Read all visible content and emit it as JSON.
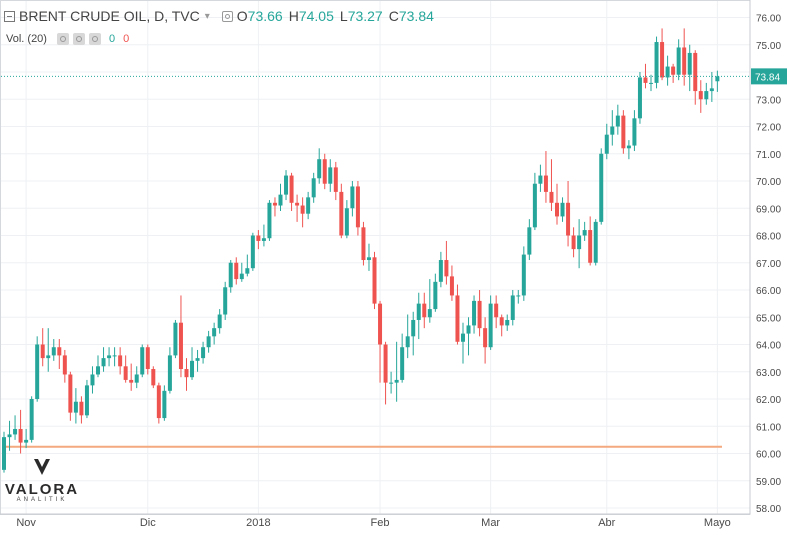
{
  "header": {
    "symbol": "BRENT CRUDE OIL, D, TVC",
    "open_label": "O",
    "open": "73.66",
    "high_label": "H",
    "high": "74.05",
    "low_label": "L",
    "low": "73.27",
    "close_label": "C",
    "close": "73.84"
  },
  "volume": {
    "label": "Vol. (20)",
    "up": "0",
    "down": "0"
  },
  "logo": {
    "name": "VALORA",
    "sub": "ANALITIK"
  },
  "colors": {
    "up": "#26a69a",
    "down": "#ef5350",
    "grid": "#eef0f3",
    "price_line": "#26a69a",
    "support_line": "#f4a97f"
  },
  "chart_data": {
    "type": "candlestick",
    "title": "BRENT CRUDE OIL, D, TVC",
    "xlabel": "",
    "ylabel": "",
    "ylim": [
      57.8,
      76.3
    ],
    "y_ticks": [
      "58.00",
      "59.00",
      "60.00",
      "61.00",
      "62.00",
      "63.00",
      "64.00",
      "65.00",
      "66.00",
      "67.00",
      "68.00",
      "69.00",
      "70.00",
      "71.00",
      "72.00",
      "73.00",
      "74.00",
      "75.00",
      "76.00"
    ],
    "x_ticks": [
      {
        "label": "Nov",
        "session": 4
      },
      {
        "label": "Dic",
        "session": 26
      },
      {
        "label": "2018",
        "session": 46
      },
      {
        "label": "Feb",
        "session": 68
      },
      {
        "label": "Mar",
        "session": 88
      },
      {
        "label": "Abr",
        "session": 109
      },
      {
        "label": "Mayo",
        "session": 129
      }
    ],
    "last_price": "73.84",
    "support_level": 60.25,
    "grid": true,
    "candles": [
      [
        0,
        59.4,
        60.6,
        59.3,
        60.8
      ],
      [
        1,
        60.6,
        60.7,
        60.1,
        61.2
      ],
      [
        2,
        60.7,
        60.9,
        60.5,
        61.4
      ],
      [
        3,
        60.9,
        60.4,
        60.0,
        61.6
      ],
      [
        4,
        60.4,
        60.5,
        60.2,
        60.9
      ],
      [
        5,
        60.5,
        62.0,
        60.4,
        62.1
      ],
      [
        6,
        62.0,
        64.0,
        61.9,
        64.3
      ],
      [
        7,
        64.0,
        63.5,
        63.2,
        64.6
      ],
      [
        8,
        63.5,
        63.6,
        63.0,
        64.6
      ],
      [
        9,
        63.6,
        63.9,
        63.4,
        64.2
      ],
      [
        10,
        63.9,
        63.6,
        63.1,
        64.2
      ],
      [
        11,
        63.6,
        62.9,
        62.6,
        63.8
      ],
      [
        12,
        62.9,
        61.5,
        61.2,
        63.0
      ],
      [
        13,
        61.5,
        61.9,
        61.1,
        62.4
      ],
      [
        14,
        61.9,
        61.4,
        61.1,
        62.1
      ],
      [
        15,
        61.4,
        62.5,
        61.3,
        62.7
      ],
      [
        16,
        62.5,
        62.9,
        62.2,
        63.2
      ],
      [
        17,
        62.9,
        63.2,
        62.8,
        63.6
      ],
      [
        18,
        63.2,
        63.5,
        63.0,
        63.9
      ],
      [
        19,
        63.5,
        63.6,
        63.2,
        63.9
      ],
      [
        20,
        63.6,
        63.6,
        63.2,
        63.9
      ],
      [
        21,
        63.6,
        63.2,
        62.9,
        63.9
      ],
      [
        22,
        63.2,
        62.7,
        62.6,
        63.6
      ],
      [
        23,
        62.7,
        62.6,
        62.3,
        63.3
      ],
      [
        24,
        62.6,
        62.9,
        62.4,
        63.2
      ],
      [
        25,
        62.9,
        63.9,
        62.8,
        64.0
      ],
      [
        26,
        63.9,
        63.1,
        62.9,
        64.0
      ],
      [
        27,
        63.1,
        62.5,
        62.4,
        63.2
      ],
      [
        28,
        62.5,
        61.3,
        61.1,
        62.6
      ],
      [
        29,
        61.3,
        62.3,
        61.2,
        62.5
      ],
      [
        30,
        62.3,
        63.6,
        62.2,
        63.9
      ],
      [
        31,
        63.6,
        64.8,
        63.5,
        64.9
      ],
      [
        32,
        64.8,
        63.1,
        62.8,
        65.8
      ],
      [
        33,
        63.1,
        62.8,
        62.3,
        63.5
      ],
      [
        34,
        62.8,
        63.4,
        62.7,
        63.9
      ],
      [
        35,
        63.4,
        63.5,
        63.0,
        63.8
      ],
      [
        36,
        63.5,
        63.9,
        63.3,
        64.1
      ],
      [
        37,
        63.9,
        64.3,
        63.7,
        64.5
      ],
      [
        38,
        64.3,
        64.6,
        64.0,
        64.8
      ],
      [
        39,
        64.6,
        65.1,
        64.4,
        65.3
      ],
      [
        40,
        65.1,
        66.1,
        64.9,
        66.3
      ],
      [
        41,
        66.1,
        67.0,
        65.9,
        67.1
      ],
      [
        42,
        67.0,
        66.4,
        66.2,
        67.2
      ],
      [
        43,
        66.4,
        66.6,
        66.3,
        67.0
      ],
      [
        44,
        66.6,
        66.8,
        66.5,
        67.3
      ],
      [
        45,
        66.8,
        68.0,
        66.7,
        68.1
      ],
      [
        46,
        68.0,
        67.8,
        67.5,
        68.2
      ],
      [
        47,
        67.8,
        67.9,
        67.6,
        68.4
      ],
      [
        48,
        67.9,
        69.2,
        67.8,
        69.3
      ],
      [
        49,
        69.2,
        69.1,
        68.7,
        69.4
      ],
      [
        50,
        69.1,
        69.5,
        68.9,
        69.9
      ],
      [
        51,
        69.5,
        70.2,
        69.3,
        70.4
      ],
      [
        52,
        70.2,
        69.2,
        68.9,
        70.3
      ],
      [
        53,
        69.2,
        69.1,
        68.5,
        69.5
      ],
      [
        54,
        69.1,
        68.8,
        68.3,
        69.4
      ],
      [
        55,
        68.8,
        69.4,
        68.6,
        69.6
      ],
      [
        56,
        69.4,
        70.1,
        69.2,
        70.3
      ],
      [
        57,
        70.1,
        70.8,
        69.9,
        71.2
      ],
      [
        58,
        70.8,
        69.9,
        69.7,
        71.0
      ],
      [
        59,
        69.9,
        70.5,
        69.6,
        70.8
      ],
      [
        60,
        70.5,
        69.6,
        69.3,
        70.7
      ],
      [
        61,
        69.6,
        68.0,
        67.9,
        69.9
      ],
      [
        62,
        68.0,
        69.0,
        67.9,
        69.3
      ],
      [
        63,
        69.0,
        69.8,
        68.7,
        70.0
      ],
      [
        64,
        69.8,
        68.3,
        68.0,
        70.0
      ],
      [
        65,
        68.3,
        67.1,
        66.9,
        68.5
      ],
      [
        66,
        67.1,
        67.2,
        66.7,
        67.7
      ],
      [
        67,
        67.2,
        65.5,
        65.3,
        67.4
      ],
      [
        68,
        65.5,
        64.0,
        62.6,
        65.6
      ],
      [
        69,
        64.0,
        62.6,
        61.8,
        64.1
      ],
      [
        70,
        62.6,
        62.6,
        62.2,
        63.0
      ],
      [
        71,
        62.6,
        62.7,
        61.9,
        64.1
      ],
      [
        72,
        62.7,
        63.9,
        62.6,
        64.4
      ],
      [
        73,
        63.9,
        64.3,
        63.5,
        65.1
      ],
      [
        74,
        64.3,
        64.9,
        63.6,
        65.2
      ],
      [
        75,
        64.9,
        65.5,
        64.2,
        65.9
      ],
      [
        76,
        65.5,
        65.0,
        64.6,
        65.9
      ],
      [
        77,
        65.0,
        65.3,
        64.8,
        66.4
      ],
      [
        78,
        65.3,
        66.3,
        65.2,
        66.6
      ],
      [
        79,
        66.3,
        67.1,
        66.1,
        67.4
      ],
      [
        80,
        67.1,
        66.5,
        66.2,
        67.8
      ],
      [
        81,
        66.5,
        65.8,
        65.6,
        66.9
      ],
      [
        82,
        65.8,
        64.1,
        64.0,
        66.2
      ],
      [
        83,
        64.1,
        64.4,
        63.3,
        64.8
      ],
      [
        84,
        64.4,
        64.7,
        63.6,
        65.0
      ],
      [
        85,
        64.7,
        65.6,
        64.4,
        65.8
      ],
      [
        86,
        65.6,
        64.6,
        64.3,
        66.0
      ],
      [
        87,
        64.6,
        63.9,
        63.3,
        65.0
      ],
      [
        88,
        63.9,
        65.5,
        63.8,
        65.8
      ],
      [
        89,
        65.5,
        65.0,
        64.6,
        65.8
      ],
      [
        90,
        65.0,
        64.7,
        64.3,
        65.1
      ],
      [
        91,
        64.7,
        64.9,
        64.5,
        65.1
      ],
      [
        92,
        64.9,
        65.8,
        64.7,
        66.0
      ],
      [
        93,
        65.8,
        65.8,
        65.5,
        66.0
      ],
      [
        94,
        65.8,
        67.3,
        65.6,
        67.6
      ],
      [
        95,
        67.3,
        68.3,
        67.1,
        68.6
      ],
      [
        96,
        68.3,
        69.9,
        68.2,
        70.3
      ],
      [
        97,
        69.9,
        70.2,
        69.6,
        70.6
      ],
      [
        98,
        70.2,
        69.6,
        69.2,
        71.1
      ],
      [
        99,
        69.6,
        69.2,
        68.9,
        70.8
      ],
      [
        100,
        69.2,
        68.7,
        68.4,
        69.9
      ],
      [
        101,
        68.7,
        69.2,
        68.5,
        69.4
      ],
      [
        102,
        69.2,
        68.0,
        67.6,
        70.0
      ],
      [
        103,
        68.0,
        67.5,
        67.2,
        68.3
      ],
      [
        104,
        67.5,
        68.0,
        66.8,
        68.6
      ],
      [
        105,
        68.0,
        68.2,
        67.8,
        68.5
      ],
      [
        106,
        68.2,
        67.0,
        66.9,
        68.7
      ],
      [
        107,
        67.0,
        68.5,
        66.9,
        68.6
      ],
      [
        108,
        68.5,
        71.0,
        68.4,
        71.2
      ],
      [
        109,
        71.0,
        71.7,
        70.8,
        72.1
      ],
      [
        110,
        71.7,
        72.0,
        71.3,
        72.6
      ],
      [
        111,
        72.0,
        72.4,
        71.7,
        72.8
      ],
      [
        112,
        72.4,
        71.2,
        71.0,
        72.6
      ],
      [
        113,
        71.2,
        71.3,
        70.8,
        71.5
      ],
      [
        114,
        71.3,
        72.3,
        71.1,
        72.6
      ],
      [
        115,
        72.3,
        73.8,
        72.1,
        74.0
      ],
      [
        116,
        73.8,
        73.6,
        73.4,
        74.3
      ],
      [
        117,
        73.6,
        73.6,
        73.3,
        73.9
      ],
      [
        118,
        73.6,
        75.1,
        73.4,
        75.3
      ],
      [
        119,
        75.1,
        73.8,
        73.7,
        75.6
      ],
      [
        120,
        73.8,
        74.2,
        73.5,
        74.6
      ],
      [
        121,
        74.2,
        73.9,
        73.6,
        74.3
      ],
      [
        122,
        73.9,
        74.9,
        73.7,
        75.2
      ],
      [
        123,
        74.9,
        73.9,
        73.5,
        75.6
      ],
      [
        124,
        73.9,
        74.7,
        73.3,
        75.0
      ],
      [
        125,
        74.7,
        73.3,
        72.8,
        74.8
      ],
      [
        126,
        73.3,
        73.0,
        72.5,
        73.7
      ],
      [
        127,
        73.0,
        73.3,
        72.8,
        73.6
      ],
      [
        128,
        73.3,
        73.4,
        72.9,
        74.0
      ],
      [
        129,
        73.66,
        73.84,
        73.27,
        74.05
      ]
    ]
  }
}
